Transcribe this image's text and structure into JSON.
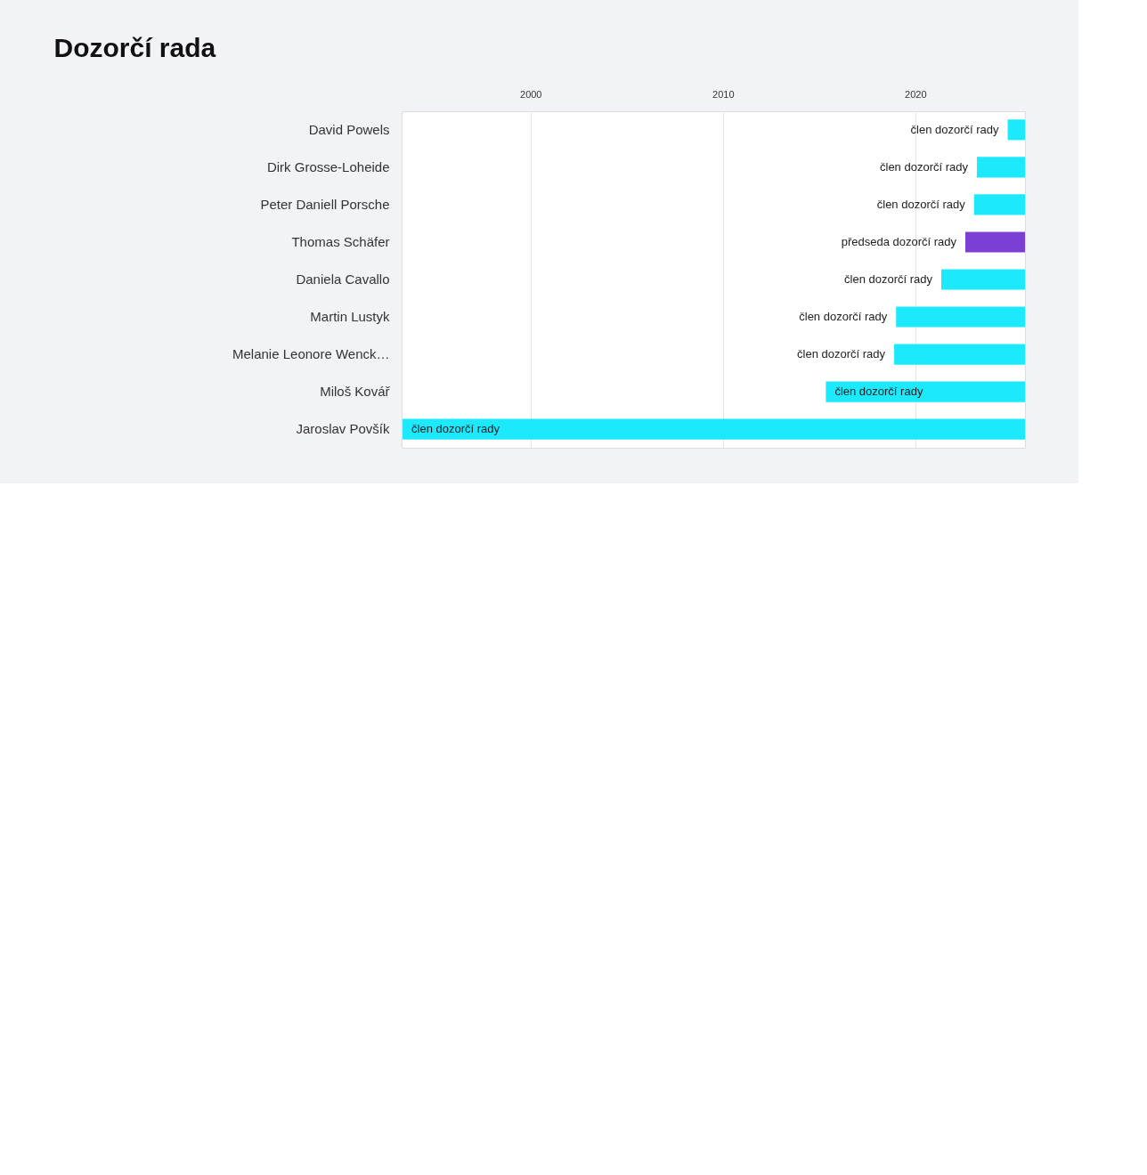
{
  "chart_data": {
    "type": "bar",
    "orientation": "horizontal",
    "title": "Dozorčí rada",
    "categories": [
      "David Powels",
      "Dirk Grosse-Loheide",
      "Peter Daniell Porsche",
      "Thomas Schäfer",
      "Daniela Cavallo",
      "Martin Lustyk",
      "Melanie Leonore Wenck…",
      "Miloš Kovář",
      "Jaroslav Povšík"
    ],
    "base": [
      2024.8,
      2023.2,
      2023.05,
      2022.6,
      2021.35,
      2019.0,
      2018.9,
      2015.35,
      1993.35
    ],
    "values": [
      0.9,
      2.5,
      2.65,
      3.1,
      4.35,
      6.7,
      6.8,
      10.35,
      32.35
    ],
    "colors": [
      "#1de9fd",
      "#1de9fd",
      "#1de9fd",
      "#7b3fd4",
      "#1de9fd",
      "#1de9fd",
      "#1de9fd",
      "#1de9fd",
      "#1de9fd"
    ],
    "value_labels": [
      "člen dozorčí rady",
      "člen dozorčí rady",
      "člen dozorčí rady",
      "předseda dozorčí rady",
      "člen dozorčí rady",
      "člen dozorčí rady",
      "člen dozorčí rady",
      "člen dozorčí rady",
      "člen dozorčí rady"
    ],
    "xlim": [
      1993.3,
      2025.7
    ],
    "xticks": [
      2000,
      2010,
      2020
    ],
    "grid": "x"
  }
}
